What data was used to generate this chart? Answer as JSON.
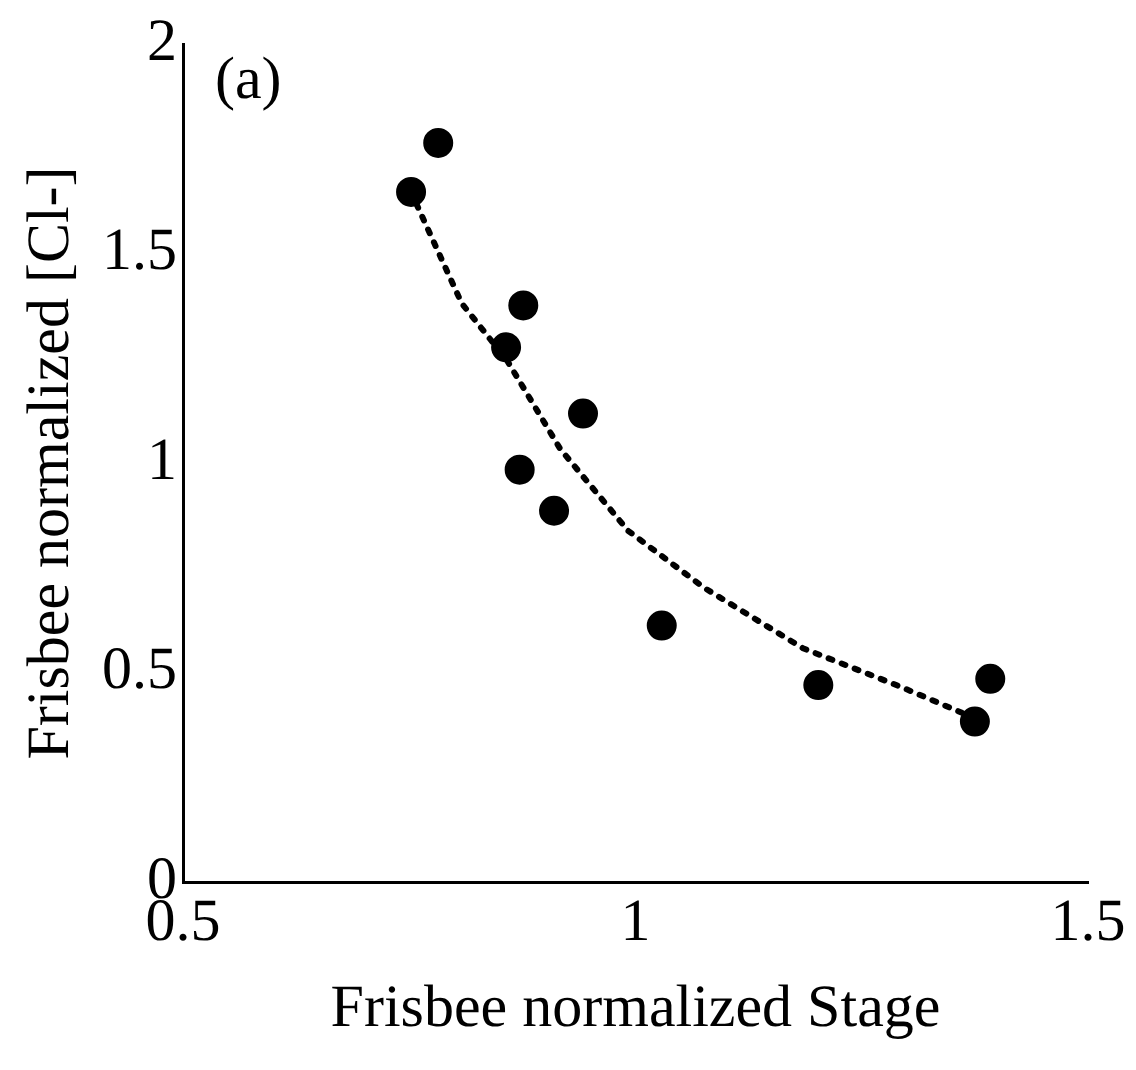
{
  "chart_data": {
    "type": "scatter",
    "xlabel": "Frisbee normalized Stage",
    "ylabel": "Frisbee normalized [Cl-]",
    "annotations": [
      "(a)"
    ],
    "xlim": [
      0.5,
      1.5
    ],
    "xticks": [
      0.5,
      1,
      1.5
    ],
    "ylim": [
      0,
      2
    ],
    "yticks": [
      0,
      0.5,
      1,
      1.5,
      2
    ],
    "grid": false,
    "legend": false,
    "marker": "circle",
    "series": [
      {
        "color": "#000000",
        "x": [
          0.782,
          0.752,
          0.876,
          0.857,
          0.942,
          0.872,
          0.91,
          1.029,
          1.202,
          1.392,
          1.375
        ],
        "values": [
          1.764,
          1.647,
          1.376,
          1.276,
          1.118,
          0.984,
          0.886,
          0.612,
          0.47,
          0.485,
          0.383
        ]
      },
      {
        "type": "line",
        "color": "#000000",
        "line_style": "dotted",
        "marker": "none",
        "x": [
          0.758,
          0.808,
          0.858,
          0.917,
          0.992,
          1.076,
          1.185,
          1.294,
          1.378
        ],
        "values": [
          1.618,
          1.381,
          1.245,
          1.033,
          0.838,
          0.702,
          0.558,
          0.465,
          0.388
        ]
      }
    ]
  }
}
